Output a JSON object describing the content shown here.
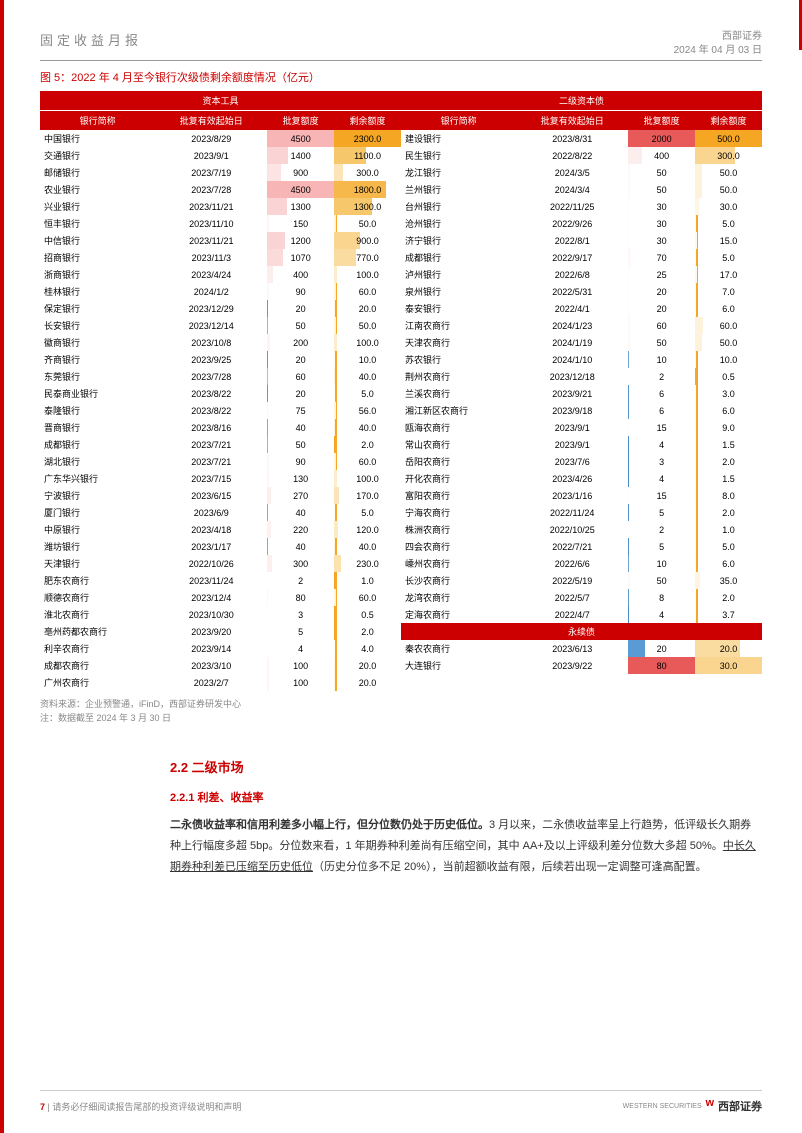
{
  "header": {
    "left": "固定收益月报",
    "org": "西部证券",
    "date": "2024 年 04 月 03 日"
  },
  "figTitle": "图 5：2022 年 4 月至今银行次级债剩余额度情况（亿元）",
  "groupHeaders": [
    "资本工具",
    "二级资本债"
  ],
  "colHeaders": [
    "银行简称",
    "批复有效起始日",
    "批复额度",
    "剩余额度"
  ],
  "perpetualHeader": "永续债",
  "maxApprove": 4500,
  "maxRemain": 2300,
  "left": [
    {
      "n": "中国银行",
      "d": "2023/8/29",
      "a": 4500,
      "r": 2300.0,
      "ac": "#f8b5b5",
      "rc": "#f5a623"
    },
    {
      "n": "交通银行",
      "d": "2023/9/1",
      "a": 1400,
      "r": 1100.0,
      "ac": "#fad4d4",
      "rc": "#f7c76b"
    },
    {
      "n": "邮储银行",
      "d": "2023/7/19",
      "a": 900,
      "r": 300.0,
      "ac": "#fce4e4",
      "rc": "#fbe5b8"
    },
    {
      "n": "农业银行",
      "d": "2023/7/28",
      "a": 4500,
      "r": 1800.0,
      "ac": "#f8b5b5",
      "rc": "#f6b84a"
    },
    {
      "n": "兴业银行",
      "d": "2023/11/21",
      "a": 1300,
      "r": 1300.0,
      "ac": "#fad4d4",
      "rc": "#f7c76b"
    },
    {
      "n": "恒丰银行",
      "d": "2023/11/10",
      "a": 150,
      "r": 50.0,
      "ac": "#fef5f5",
      "rc": "#fdf3dc"
    },
    {
      "n": "中信银行",
      "d": "2023/11/21",
      "a": 1200,
      "r": 900.0,
      "ac": "#fad4d4",
      "rc": "#f9d590"
    },
    {
      "n": "招商银行",
      "d": "2023/11/3",
      "a": 1070,
      "r": 770.0,
      "ac": "#fbdada",
      "rc": "#fadca0"
    },
    {
      "n": "浙商银行",
      "d": "2023/4/24",
      "a": 400,
      "r": 100.0,
      "ac": "#fdeeee",
      "rc": "#fceecb"
    },
    {
      "n": "桂林银行",
      "d": "2024/1/2",
      "a": 90,
      "r": 60.0,
      "ac": "#fef7f7",
      "rc": "#fdf3dc"
    },
    {
      "n": "保定银行",
      "d": "2023/12/29",
      "a": 20,
      "r": 20.0,
      "ac": "#5b9bd5",
      "rc": "#fdf6e3"
    },
    {
      "n": "长安银行",
      "d": "2023/12/14",
      "a": 50,
      "r": 50.0,
      "ac": "#8bb8e0",
      "rc": "#fdf3dc"
    },
    {
      "n": "徽商银行",
      "d": "2023/10/8",
      "a": 200,
      "r": 100.0,
      "ac": "#fef2f2",
      "rc": "#fceecb"
    },
    {
      "n": "齐商银行",
      "d": "2023/9/25",
      "a": 20,
      "r": 10.0,
      "ac": "#5b9bd5",
      "rc": "#fef9ed"
    },
    {
      "n": "东莞银行",
      "d": "2023/7/28",
      "a": 60,
      "r": 40.0,
      "ac": "#9cc3e4",
      "rc": "#fdf3dc"
    },
    {
      "n": "民泰商业银行",
      "d": "2023/8/22",
      "a": 20,
      "r": 5.0,
      "ac": "#5b9bd5",
      "rc": "#fefbf2"
    },
    {
      "n": "泰隆银行",
      "d": "2023/8/22",
      "a": 75,
      "r": 56.0,
      "ac": "#fef7f7",
      "rc": "#fdf3dc"
    },
    {
      "n": "晋商银行",
      "d": "2023/8/16",
      "a": 40,
      "r": 40.0,
      "ac": "#7daed8",
      "rc": "#fdf3dc"
    },
    {
      "n": "成都银行",
      "d": "2023/7/21",
      "a": 50,
      "r": 2.0,
      "ac": "#8bb8e0",
      "rc": "#fefcf5"
    },
    {
      "n": "湖北银行",
      "d": "2023/7/21",
      "a": 90,
      "r": 60.0,
      "ac": "#fef7f7",
      "rc": "#fdf3dc"
    },
    {
      "n": "广东华兴银行",
      "d": "2023/7/15",
      "a": 130,
      "r": 100.0,
      "ac": "#fef5f5",
      "rc": "#fceecb"
    },
    {
      "n": "宁波银行",
      "d": "2023/6/15",
      "a": 270,
      "r": 170.0,
      "ac": "#feefef",
      "rc": "#fbe5b8"
    },
    {
      "n": "厦门银行",
      "d": "2023/6/9",
      "a": 40,
      "r": 5.0,
      "ac": "#7daed8",
      "rc": "#fefbf2"
    },
    {
      "n": "中原银行",
      "d": "2023/4/18",
      "a": 220,
      "r": 120.0,
      "ac": "#fef1f1",
      "rc": "#fceac0"
    },
    {
      "n": "潍坊银行",
      "d": "2023/1/17",
      "a": 40,
      "r": 40.0,
      "ac": "#7daed8",
      "rc": "#fdf3dc"
    },
    {
      "n": "天津银行",
      "d": "2022/10/26",
      "a": 300,
      "r": 230.0,
      "ac": "#feefef",
      "rc": "#fbe2af"
    },
    {
      "n": "肥东农商行",
      "d": "2023/11/24",
      "a": 2,
      "r": 1.0,
      "ac": "#4a8bc9",
      "rc": "#fefcf5"
    },
    {
      "n": "顺德农商行",
      "d": "2023/12/4",
      "a": 80,
      "r": 60.0,
      "ac": "#fef7f7",
      "rc": "#fdf3dc"
    },
    {
      "n": "淮北农商行",
      "d": "2023/10/30",
      "a": 3,
      "r": 0.5,
      "ac": "#4a8bc9",
      "rc": "#fefcf5"
    },
    {
      "n": "亳州药都农商行",
      "d": "2023/9/20",
      "a": 5,
      "r": 2.0,
      "ac": "#4a8bc9",
      "rc": "#fefcf5"
    },
    {
      "n": "利辛农商行",
      "d": "2023/9/14",
      "a": 4,
      "r": 4.0,
      "ac": "#4a8bc9",
      "rc": "#fefbf2"
    },
    {
      "n": "成都农商行",
      "d": "2023/3/10",
      "a": 100,
      "r": 20.0,
      "ac": "#fef6f6",
      "rc": "#fdf6e3"
    },
    {
      "n": "广州农商行",
      "d": "2023/2/7",
      "a": 100,
      "r": 20.0,
      "ac": "#fef6f6",
      "rc": "#fdf6e3"
    }
  ],
  "right": [
    {
      "n": "建设银行",
      "d": "2023/8/31",
      "a": 2000,
      "r": 500.0,
      "ac": "#e85a5a",
      "rc": "#f5a623"
    },
    {
      "n": "民生银行",
      "d": "2022/8/22",
      "a": 400,
      "r": 300.0,
      "ac": "#fdeeee",
      "rc": "#f9d590"
    },
    {
      "n": "龙江银行",
      "d": "2024/3/5",
      "a": 50,
      "r": 50.0,
      "ac": "#fef9f9",
      "rc": "#fdf3dc"
    },
    {
      "n": "兰州银行",
      "d": "2024/3/4",
      "a": 50,
      "r": 50.0,
      "ac": "#fef9f9",
      "rc": "#fdf3dc"
    },
    {
      "n": "台州银行",
      "d": "2022/11/25",
      "a": 30,
      "r": 30.0,
      "ac": "#fefafa",
      "rc": "#fdf6e3"
    },
    {
      "n": "沧州银行",
      "d": "2022/9/26",
      "a": 30,
      "r": 5.0,
      "ac": "#fefafa",
      "rc": "#fefbf2"
    },
    {
      "n": "济宁银行",
      "d": "2022/8/1",
      "a": 30,
      "r": 15.0,
      "ac": "#fefafa",
      "rc": "#fef8e8"
    },
    {
      "n": "成都银行",
      "d": "2022/9/17",
      "a": 70,
      "r": 5.0,
      "ac": "#fef8f8",
      "rc": "#fefbf2"
    },
    {
      "n": "泸州银行",
      "d": "2022/6/8",
      "a": 25,
      "r": 17.0,
      "ac": "#fefafa",
      "rc": "#fef8e8"
    },
    {
      "n": "泉州银行",
      "d": "2022/5/31",
      "a": 20,
      "r": 7.0,
      "ac": "#fefbfb",
      "rc": "#fefaf0"
    },
    {
      "n": "泰安银行",
      "d": "2022/4/1",
      "a": 20,
      "r": 6.0,
      "ac": "#fefbfb",
      "rc": "#fefaf0"
    },
    {
      "n": "江南农商行",
      "d": "2024/1/23",
      "a": 60,
      "r": 60.0,
      "ac": "#fef8f8",
      "rc": "#fdf3dc"
    },
    {
      "n": "天津农商行",
      "d": "2024/1/19",
      "a": 50,
      "r": 50.0,
      "ac": "#fef9f9",
      "rc": "#fdf3dc"
    },
    {
      "n": "苏农银行",
      "d": "2024/1/10",
      "a": 10,
      "r": 10.0,
      "ac": "#6fa5d2",
      "rc": "#fef9ed"
    },
    {
      "n": "荆州农商行",
      "d": "2023/12/18",
      "a": 2,
      "r": 0.5,
      "ac": "#4a8bc9",
      "rc": "#fefcf5"
    },
    {
      "n": "兰溪农商行",
      "d": "2023/9/21",
      "a": 6,
      "r": 3.0,
      "ac": "#5594cd",
      "rc": "#fefbf2"
    },
    {
      "n": "湘江新区农商行",
      "d": "2023/9/18",
      "a": 6,
      "r": 6.0,
      "ac": "#5594cd",
      "rc": "#fefaf0"
    },
    {
      "n": "瓯海农商行",
      "d": "2023/9/1",
      "a": 15,
      "r": 9.0,
      "ac": "#fefcfc",
      "rc": "#fefaf0"
    },
    {
      "n": "常山农商行",
      "d": "2023/9/1",
      "a": 4,
      "r": 1.5,
      "ac": "#4a8bc9",
      "rc": "#fefcf5"
    },
    {
      "n": "岳阳农商行",
      "d": "2023/7/6",
      "a": 3,
      "r": 2.0,
      "ac": "#4a8bc9",
      "rc": "#fefcf5"
    },
    {
      "n": "开化农商行",
      "d": "2023/4/26",
      "a": 4,
      "r": 1.5,
      "ac": "#4a8bc9",
      "rc": "#fefcf5"
    },
    {
      "n": "富阳农商行",
      "d": "2023/1/16",
      "a": 15,
      "r": 8.0,
      "ac": "#fefcfc",
      "rc": "#fefaf0"
    },
    {
      "n": "宁海农商行",
      "d": "2022/11/24",
      "a": 5,
      "r": 2.0,
      "ac": "#5091cb",
      "rc": "#fefcf5"
    },
    {
      "n": "株洲农商行",
      "d": "2022/10/25",
      "a": 2,
      "r": 1.0,
      "ac": "#4a8bc9",
      "rc": "#fefcf5"
    },
    {
      "n": "四会农商行",
      "d": "2022/7/21",
      "a": 5,
      "r": 5.0,
      "ac": "#5091cb",
      "rc": "#fefbf2"
    },
    {
      "n": "嵊州农商行",
      "d": "2022/6/6",
      "a": 10,
      "r": 6.0,
      "ac": "#6fa5d2",
      "rc": "#fefaf0"
    },
    {
      "n": "长沙农商行",
      "d": "2022/5/19",
      "a": 50,
      "r": 35.0,
      "ac": "#fef9f9",
      "rc": "#fdf5e0"
    },
    {
      "n": "龙湾农商行",
      "d": "2022/5/7",
      "a": 8,
      "r": 2.0,
      "ac": "#5f9dce",
      "rc": "#fefcf5"
    },
    {
      "n": "定海农商行",
      "d": "2022/4/7",
      "a": 4,
      "r": 3.7,
      "ac": "#4a8bc9",
      "rc": "#fefbf2"
    }
  ],
  "perpetual": [
    {
      "n": "秦农农商行",
      "d": "2023/6/13",
      "a": 20,
      "r": 20.0,
      "ac": "#5b9bd5",
      "rc": "#fadca0"
    },
    {
      "n": "大连银行",
      "d": "2023/9/22",
      "a": 80,
      "r": 30.0,
      "ac": "#e85a5a",
      "rc": "#f9d590"
    }
  ],
  "source": "资料来源：企业预警通，iFinD，西部证券研发中心",
  "note": "注：数据截至 2024 年 3 月 30 日",
  "section": {
    "h2": "2.2 二级市场",
    "h3": "2.2.1 利差、收益率",
    "body": "二永债收益率和信用利差多小幅上行，但分位数仍处于历史低位。3 月以来，二永债收益率呈上行趋势，低评级长久期券种上行幅度多超 5bp。分位数来看，1 年期券种利差尚有压缩空间，其中 AA+及以上评级利差分位数大多超 50%。中长久期券种利差已压缩至历史低位（历史分位多不足 20%），当前超额收益有限，后续若出现一定调整可逢高配置。",
    "boldPart": "二永债收益率和信用利差多小幅上行，但分位数仍处于历史低位。",
    "ulPart": "中长久期券种利差已压缩至历史低位"
  },
  "footer": {
    "page": "7",
    "txt": "请务必仔细阅读报告尾部的投资评级说明和声明",
    "brand": "西部证券",
    "brandEn": "WESTERN SECURITIES"
  }
}
